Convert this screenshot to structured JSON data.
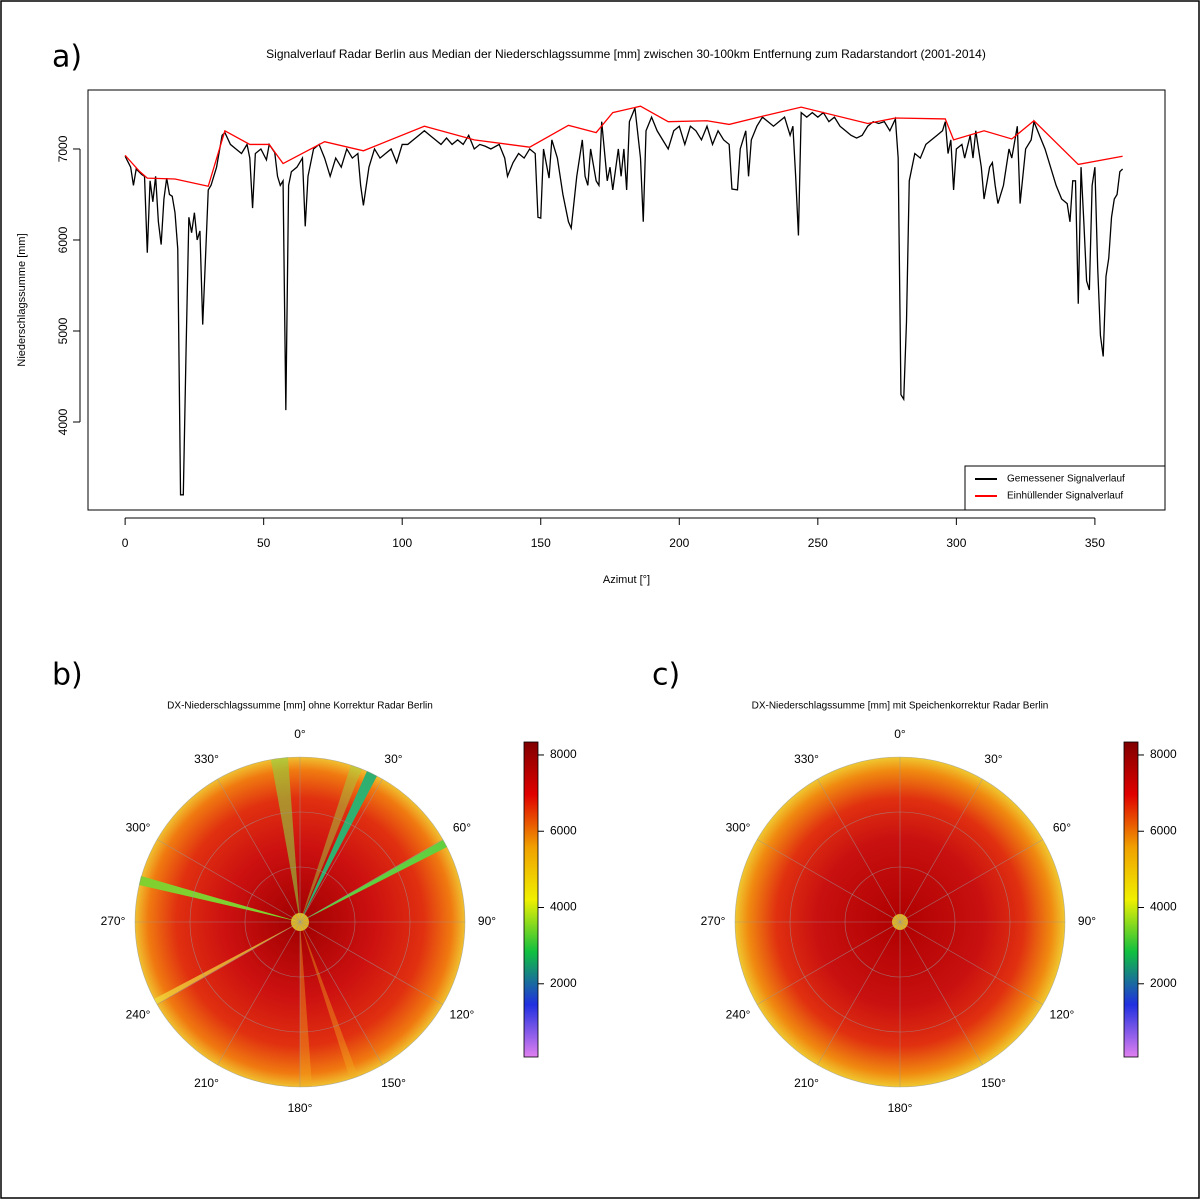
{
  "chart_data": [
    {
      "type": "line",
      "panel_label": "a)",
      "title": "Signalverlauf Radar Berlin aus Median der Niederschlagssumme [mm] zwischen 30-100km Entfernung zum Radarstandort (2001-2014)",
      "x_label": "Azimut [°]",
      "y_label": "Niederschlagssumme [mm]",
      "xlim": [
        -13.4,
        375.3
      ],
      "ylim": [
        3033,
        7648
      ],
      "xticks": [
        0,
        50,
        100,
        150,
        200,
        250,
        300,
        350
      ],
      "yticks": [
        4000,
        5000,
        6000,
        7000
      ],
      "legend": "bottom-right",
      "series": [
        {
          "name": "Gemessener Signalverlauf",
          "color": "#000000",
          "x": [
            0,
            2,
            3,
            4,
            6,
            7,
            8,
            9,
            10,
            11,
            12,
            13,
            14,
            15,
            16,
            17,
            18,
            19,
            20,
            21,
            22,
            23,
            24,
            25,
            26,
            27,
            28,
            29,
            30,
            31,
            33,
            35,
            36,
            38,
            40,
            42,
            44,
            45,
            46,
            47,
            49,
            51,
            52,
            54,
            55,
            56,
            57,
            58,
            59,
            60,
            62,
            64,
            65,
            66,
            68,
            70,
            72,
            74,
            76,
            78,
            80,
            82,
            84,
            85,
            86,
            88,
            90,
            92,
            94,
            96,
            98,
            100,
            102,
            104,
            106,
            108,
            110,
            112,
            114,
            116,
            118,
            120,
            122,
            124,
            126,
            128,
            130,
            132,
            135,
            137,
            138,
            140,
            142,
            144,
            146,
            148,
            149,
            150,
            151,
            153,
            154,
            156,
            158,
            160,
            161,
            163,
            165,
            166,
            167,
            168,
            170,
            171,
            172,
            174,
            175,
            176,
            178,
            179,
            180,
            181,
            182,
            184,
            186,
            187,
            188,
            190,
            192,
            194,
            196,
            198,
            200,
            202,
            204,
            206,
            208,
            210,
            212,
            214,
            216,
            218,
            219,
            221,
            222,
            224,
            225,
            226,
            228,
            230,
            232,
            234,
            236,
            238,
            240,
            241,
            242,
            243,
            244,
            246,
            248,
            250,
            252,
            254,
            256,
            258,
            260,
            262,
            264,
            266,
            268,
            270,
            272,
            274,
            276,
            278,
            279,
            280,
            281,
            282,
            283,
            285,
            287,
            289,
            291,
            293,
            295,
            296,
            297,
            298,
            299,
            300,
            302,
            303,
            305,
            306,
            307,
            309,
            310,
            312,
            313,
            314,
            315,
            317,
            319,
            320,
            322,
            323,
            325,
            327,
            328,
            330,
            332,
            334,
            336,
            338,
            340,
            341,
            342,
            343,
            344,
            345,
            346,
            347,
            348,
            349,
            350,
            351,
            352,
            353,
            354,
            355,
            356,
            357,
            358,
            359,
            360
          ],
          "values": [
            6920,
            6800,
            6600,
            6780,
            6720,
            6700,
            5860,
            6650,
            6420,
            6700,
            6200,
            5950,
            6450,
            6680,
            6500,
            6480,
            6300,
            5900,
            3200,
            3200,
            4800,
            6250,
            6080,
            6300,
            6000,
            6100,
            5070,
            5800,
            6550,
            6600,
            6800,
            7150,
            7180,
            7050,
            7000,
            6950,
            7050,
            6900,
            6350,
            6950,
            7000,
            6880,
            7050,
            6960,
            6700,
            6600,
            6650,
            4130,
            6600,
            6750,
            6800,
            6900,
            6150,
            6700,
            7000,
            7050,
            6900,
            6700,
            6900,
            6800,
            7000,
            6900,
            6950,
            6600,
            6380,
            6800,
            7000,
            6900,
            6950,
            7000,
            6850,
            7050,
            7050,
            7100,
            7150,
            7200,
            7150,
            7100,
            7050,
            7120,
            7050,
            7100,
            7050,
            7150,
            7000,
            7050,
            7030,
            7000,
            7050,
            6900,
            6700,
            6850,
            6950,
            6900,
            7000,
            6950,
            6250,
            6240,
            7000,
            6680,
            7100,
            6900,
            6500,
            6200,
            6130,
            6700,
            7100,
            6700,
            6600,
            7000,
            6650,
            6600,
            7300,
            6650,
            6800,
            6550,
            7000,
            6700,
            7000,
            6550,
            7300,
            7450,
            6900,
            6200,
            7200,
            7350,
            7200,
            7100,
            7000,
            7200,
            7250,
            7050,
            7250,
            7200,
            7100,
            7250,
            7050,
            7200,
            7100,
            7050,
            6560,
            6550,
            7000,
            7200,
            6700,
            7100,
            7250,
            7350,
            7300,
            7250,
            7300,
            7350,
            7150,
            7250,
            6700,
            6050,
            7400,
            7350,
            7400,
            7350,
            7400,
            7300,
            7350,
            7250,
            7200,
            7150,
            7120,
            7150,
            7250,
            7300,
            7280,
            7300,
            7200,
            7330,
            6900,
            4300,
            4250,
            5100,
            6650,
            6950,
            6900,
            7050,
            7100,
            7150,
            7200,
            7300,
            6950,
            7100,
            6550,
            7000,
            7050,
            6900,
            7150,
            6900,
            7200,
            6800,
            6450,
            6800,
            6850,
            6600,
            6400,
            6600,
            7000,
            6900,
            7250,
            6400,
            7000,
            7100,
            7300,
            7150,
            7000,
            6800,
            6600,
            6450,
            6400,
            6200,
            6650,
            6650,
            5300,
            6800,
            6200,
            5550,
            5450,
            6600,
            6800,
            5700,
            4950,
            4720,
            5600,
            5800,
            6250,
            6450,
            6500,
            6750,
            6780
          ]
        },
        {
          "name": "Einhüllender Signalverlauf",
          "color": "#ff0000",
          "x": [
            0,
            5,
            8,
            18,
            30,
            36,
            45,
            52,
            57,
            72,
            86,
            108,
            126,
            146,
            160,
            170,
            176,
            186,
            196,
            210,
            218,
            230,
            244,
            268,
            278,
            296,
            299,
            310,
            320,
            328,
            344,
            360
          ],
          "values": [
            6930,
            6760,
            6680,
            6670,
            6590,
            7200,
            7050,
            7050,
            6840,
            7080,
            6980,
            7250,
            7100,
            7020,
            7260,
            7180,
            7400,
            7470,
            7300,
            7310,
            7270,
            7360,
            7460,
            7280,
            7340,
            7330,
            7100,
            7200,
            7110,
            7310,
            6830,
            6920
          ]
        }
      ]
    },
    {
      "type": "polar-heatmap",
      "panel_label": "b)",
      "title": "DX-Niederschlagssumme [mm] ohne Korrektur Radar Berlin",
      "angle_ticks": [
        {
          "value": 0,
          "label": "0°"
        },
        {
          "value": 30,
          "label": "30°"
        },
        {
          "value": 60,
          "label": "60°"
        },
        {
          "value": 90,
          "label": "90°"
        },
        {
          "value": 120,
          "label": "120°"
        },
        {
          "value": 150,
          "label": "150°"
        },
        {
          "value": 180,
          "label": "180°"
        },
        {
          "value": 210,
          "label": "210°"
        },
        {
          "value": 240,
          "label": "240°"
        },
        {
          "value": 270,
          "label": "270°"
        },
        {
          "value": 300,
          "label": "300°"
        },
        {
          "value": 330,
          "label": "330°"
        }
      ],
      "colorbar": {
        "lim": [
          80,
          8340
        ],
        "ticks": [
          2000,
          4000,
          6000,
          8000
        ],
        "colors": [
          "#e080f0",
          "#2030e0",
          "#10c040",
          "#f0f000",
          "#f0a000",
          "#e00000",
          "#800000"
        ]
      }
    },
    {
      "type": "polar-heatmap",
      "panel_label": "c)",
      "title": "DX-Niederschlagssumme [mm] mit Speichenkorrektur Radar Berlin",
      "angle_ticks": [
        {
          "value": 0,
          "label": "0°"
        },
        {
          "value": 30,
          "label": "30°"
        },
        {
          "value": 60,
          "label": "60°"
        },
        {
          "value": 90,
          "label": "90°"
        },
        {
          "value": 120,
          "label": "120°"
        },
        {
          "value": 150,
          "label": "150°"
        },
        {
          "value": 180,
          "label": "180°"
        },
        {
          "value": 210,
          "label": "210°"
        },
        {
          "value": 240,
          "label": "240°"
        },
        {
          "value": 270,
          "label": "270°"
        },
        {
          "value": 300,
          "label": "300°"
        },
        {
          "value": 330,
          "label": "330°"
        }
      ],
      "colorbar": {
        "lim": [
          80,
          8340
        ],
        "ticks": [
          2000,
          4000,
          6000,
          8000
        ],
        "colors": [
          "#e080f0",
          "#2030e0",
          "#10c040",
          "#f0f000",
          "#f0a000",
          "#e00000",
          "#800000"
        ]
      }
    }
  ]
}
